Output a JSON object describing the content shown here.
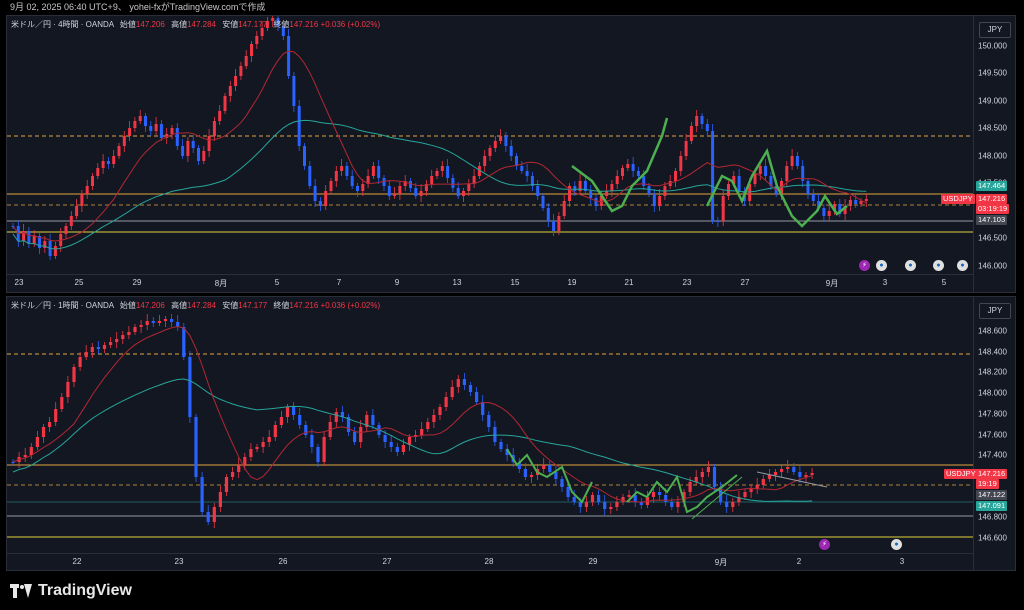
{
  "header": {
    "text": "9月 02, 2025 06:40 UTC+9、 yohei-fxがTradingView.comで作成"
  },
  "panel1": {
    "legend": {
      "name": "米ドル／円 · 4時間 · OANDA",
      "o_lbl": "始値",
      "o": "147.206",
      "h_lbl": "高値",
      "h": "147.284",
      "l_lbl": "安値",
      "l": "147.177",
      "c_lbl": "終値",
      "c": "147.216",
      "chg": "+0.036 (+0.02%)"
    },
    "currency": "JPY",
    "y_ticks": [
      "150.000",
      "149.500",
      "149.000",
      "148.500",
      "148.000",
      "147.500",
      "147.000",
      "146.500",
      "146.000"
    ],
    "x_ticks": [
      "23",
      "25",
      "29",
      "8月",
      "5",
      "7",
      "9",
      "13",
      "15",
      "19",
      "21",
      "23",
      "27",
      "9月",
      "3",
      "5"
    ],
    "tags": {
      "ema": "147.464",
      "symbol": "USDJPY",
      "price": "147.216",
      "countdown": "03:19:19",
      "level": "147.103"
    },
    "colors": {
      "ema": "#26a69a",
      "symbol": "#f23645",
      "level": "#434651"
    }
  },
  "panel2": {
    "legend": {
      "name": "米ドル／円 · 1時間 · OANDA",
      "o_lbl": "始値",
      "o": "147.206",
      "h_lbl": "高値",
      "h": "147.284",
      "l_lbl": "安値",
      "l": "147.177",
      "c_lbl": "終値",
      "c": "147.216",
      "chg": "+0.036 (+0.02%)"
    },
    "currency": "JPY",
    "y_ticks": [
      "148.600",
      "148.400",
      "148.200",
      "148.000",
      "147.800",
      "147.600",
      "147.400",
      "147.200",
      "147.000",
      "146.800",
      "146.600"
    ],
    "x_ticks": [
      "22",
      "23",
      "26",
      "27",
      "28",
      "29",
      "9月",
      "2",
      "3"
    ],
    "tags": {
      "symbol": "USDJPY",
      "price": "147.216",
      "countdown": "19:19",
      "level": "147.122",
      "ema": "147.091"
    },
    "colors": {
      "ema": "#26a69a",
      "symbol": "#f23645",
      "level": "#434651"
    }
  },
  "footer": {
    "brand": "TradingView"
  }
}
